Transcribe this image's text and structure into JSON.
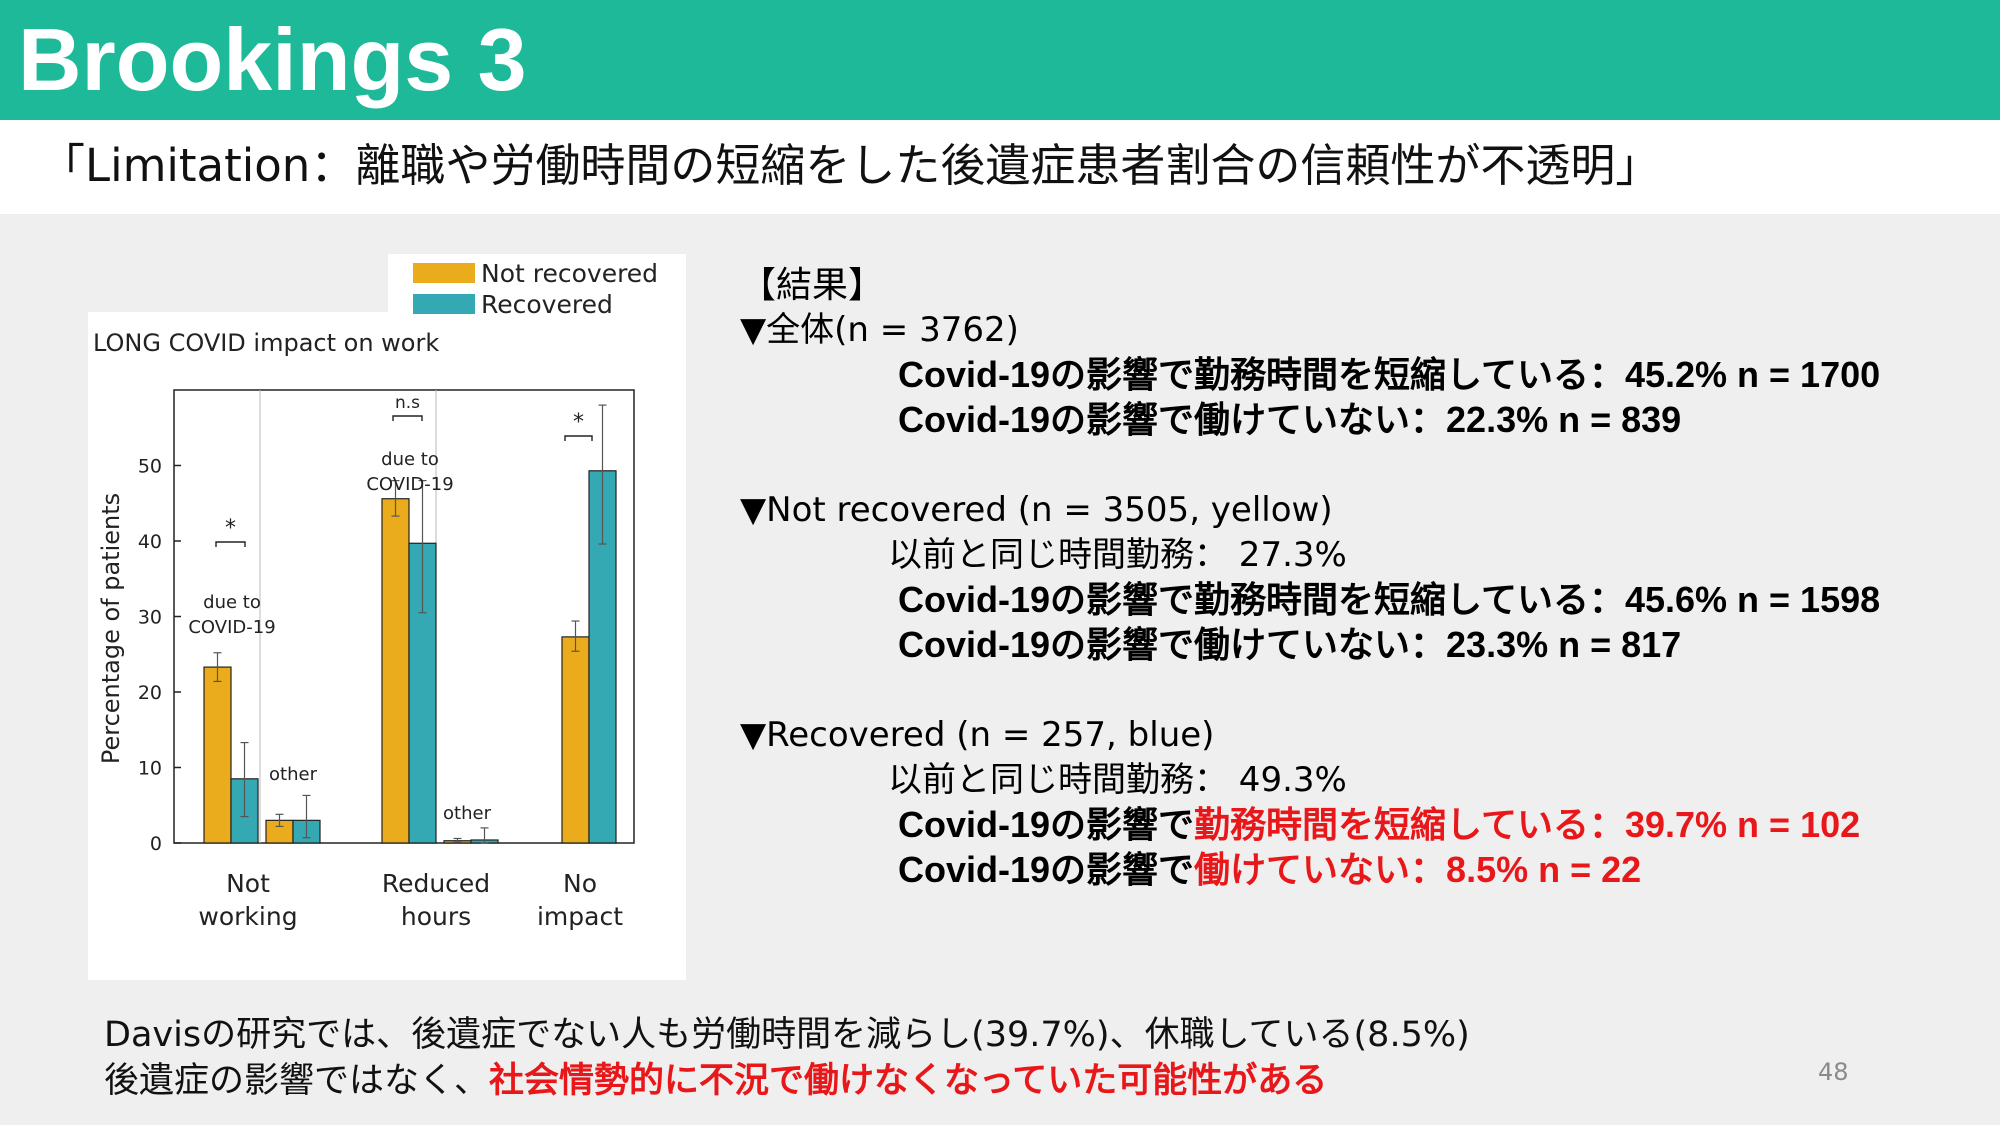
{
  "slide": {
    "title": "Brookings 3",
    "subtitle": "「Limitation：離職や労働時間の短縮をした後遺症患者割合の信頼性が不透明」",
    "page_number": "48"
  },
  "colors": {
    "header": "#1eb998",
    "not_recovered": "#eaac1c",
    "recovered": "#34a8b3",
    "highlight_red": "#e8171a"
  },
  "chart_data": {
    "type": "bar",
    "title": "LONG COVID impact on work",
    "ylabel": "Percentage of patients",
    "ylim": [
      0,
      60
    ],
    "yticks": [
      0,
      10,
      20,
      30,
      40,
      50
    ],
    "grid": false,
    "legend_position": "top-right",
    "groups": [
      {
        "label_lines": [
          "Not",
          "working"
        ],
        "bars": [
          {
            "series": "Not recovered",
            "value": 23.3,
            "err_low": 21.4,
            "err_high": 25.2
          },
          {
            "series": "Recovered",
            "value": 8.5,
            "err_low": 3.5,
            "err_high": 13.3
          },
          {
            "series": "Not recovered",
            "value": 3.0,
            "err_low": 2.2,
            "err_high": 3.8
          },
          {
            "series": "Recovered",
            "value": 3.0,
            "err_low": 0.7,
            "err_high": 6.3
          }
        ],
        "sublabels": [
          {
            "lines": [
              "due to",
              "COVID-19"
            ],
            "anchor": "left"
          },
          {
            "lines": [
              "other"
            ],
            "anchor": "right"
          }
        ],
        "significance": "*"
      },
      {
        "label_lines": [
          "Reduced",
          "hours"
        ],
        "bars": [
          {
            "series": "Not recovered",
            "value": 45.6,
            "err_low": 43.3,
            "err_high": 48.0
          },
          {
            "series": "Recovered",
            "value": 39.7,
            "err_low": 30.5,
            "err_high": 48.0
          },
          {
            "series": "Not recovered",
            "value": 0.3,
            "err_low": 0.1,
            "err_high": 0.6
          },
          {
            "series": "Recovered",
            "value": 0.4,
            "err_low": 0.0,
            "err_high": 2.0
          }
        ],
        "sublabels": [
          {
            "lines": [
              "due to",
              "COVID-19"
            ],
            "anchor": "left"
          },
          {
            "lines": [
              "other"
            ],
            "anchor": "right"
          }
        ],
        "significance": "n.s"
      },
      {
        "label_lines": [
          "No",
          "impact"
        ],
        "bars": [
          {
            "series": "Not recovered",
            "value": 27.3,
            "err_low": 25.4,
            "err_high": 29.4
          },
          {
            "series": "Recovered",
            "value": 49.3,
            "err_low": 39.6,
            "err_high": 58.0
          }
        ],
        "sublabels": [],
        "significance": "*"
      }
    ],
    "legend": [
      {
        "name": "Not recovered",
        "color": "#eaac1c"
      },
      {
        "name": "Recovered",
        "color": "#34a8b3"
      }
    ]
  },
  "results": {
    "heading": "【結果】",
    "overall": {
      "label": "▼全体(n = 3762)",
      "reduced_hours": "Covid-19の影響で勤務時間を短縮している：45.2% n = 1700",
      "not_working": "Covid-19の影響で働けていない：22.3% n = 839"
    },
    "not_recovered": {
      "label_main": "▼Not recovered",
      "label_detail": " (n = 3505, yellow)",
      "same_hours": "以前と同じ時間勤務： 27.3%",
      "reduced_hours": "Covid-19の影響で勤務時間を短縮している：45.6% n = 1598",
      "not_working": "Covid-19の影響で働けていない：23.3% n = 817"
    },
    "recovered": {
      "label_main": "▼Recovered",
      "label_detail": " (n = 257, blue)",
      "same_hours": "以前と同じ時間勤務： 49.3%",
      "reduced_prefix": "Covid-19の影響で",
      "reduced_highlight": "勤務時間を短縮している：39.7% n = 102",
      "not_working_prefix": "Covid-19の影響で",
      "not_working_highlight": "働けていない：8.5% n =  22"
    }
  },
  "conclusion": {
    "line1": "Davisの研究では、後遺症でない人も労働時間を減らし(39.7%)、休職している(8.5%)",
    "line2_prefix": "後遺症の影響ではなく、",
    "line2_highlight": "社会情勢的に不況で働けなくなっていた可能性がある"
  }
}
